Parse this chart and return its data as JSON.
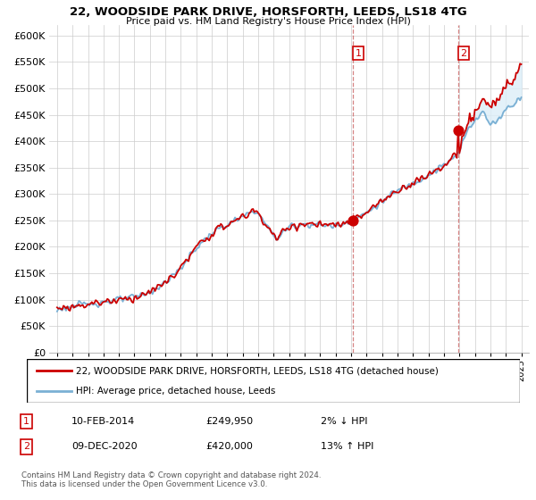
{
  "title": "22, WOODSIDE PARK DRIVE, HORSFORTH, LEEDS, LS18 4TG",
  "subtitle": "Price paid vs. HM Land Registry's House Price Index (HPI)",
  "property_label": "22, WOODSIDE PARK DRIVE, HORSFORTH, LEEDS, LS18 4TG (detached house)",
  "hpi_label": "HPI: Average price, detached house, Leeds",
  "sale1_date": "10-FEB-2014",
  "sale1_price": 249950,
  "sale1_pct": "2% ↓ HPI",
  "sale2_date": "09-DEC-2020",
  "sale2_price": 420000,
  "sale2_pct": "13% ↑ HPI",
  "footnote": "Contains HM Land Registry data © Crown copyright and database right 2024.\nThis data is licensed under the Open Government Licence v3.0.",
  "property_color": "#cc0000",
  "hpi_color": "#7ab0d4",
  "shade_color": "#ddeef8",
  "dashed_color": "#cc6666",
  "ylim": [
    0,
    620000
  ],
  "yticks": [
    0,
    50000,
    100000,
    150000,
    200000,
    250000,
    300000,
    350000,
    400000,
    450000,
    500000,
    550000,
    600000
  ],
  "sale1_x": 2014.11,
  "sale2_x": 2020.92,
  "xmin": 1994.5,
  "xmax": 2025.5
}
